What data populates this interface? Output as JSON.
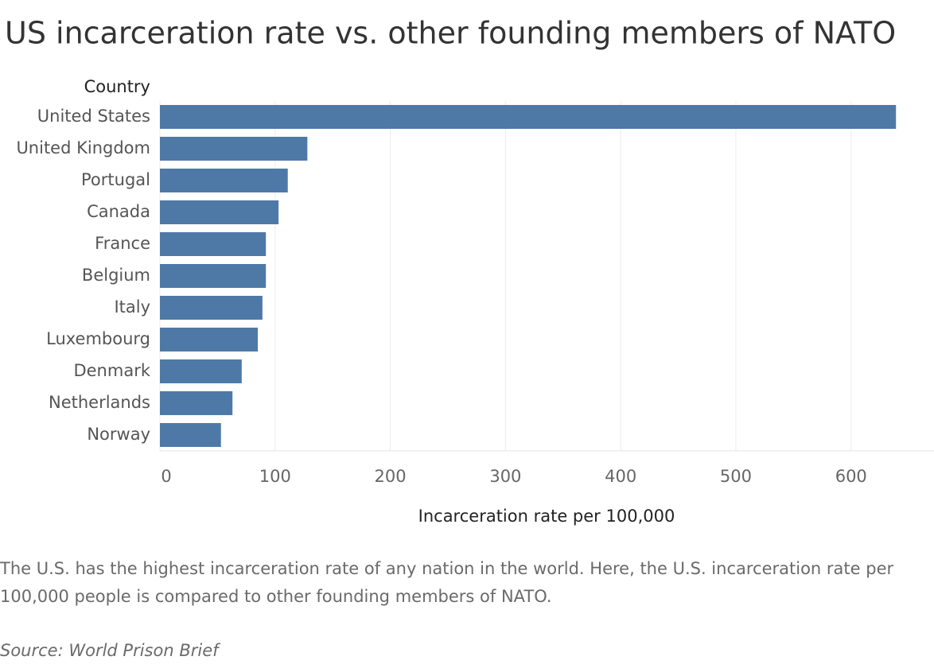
{
  "chart_data": {
    "type": "bar",
    "orientation": "horizontal",
    "title": "US incarceration rate vs. other founding members of NATO",
    "y_axis_label": "Country",
    "x_axis_label": "Incarceration rate per 100,000",
    "categories": [
      "United States",
      "United Kingdom",
      "Portugal",
      "Canada",
      "France",
      "Belgium",
      "Italy",
      "Luxembourg",
      "Denmark",
      "Netherlands",
      "Norway"
    ],
    "values": [
      639,
      128,
      111,
      103,
      92,
      92,
      89,
      85,
      71,
      63,
      53
    ],
    "color": "#4e79a7",
    "xlim": [
      0,
      672
    ],
    "xticks": [
      0,
      100,
      200,
      300,
      400,
      500,
      600
    ],
    "grid": true,
    "description": "The U.S. has the highest incarceration rate of any nation in the world. Here, the U.S. incarceration rate per 100,000 people is compared to other founding members of NATO.",
    "source": "Source: World Prison Brief"
  }
}
